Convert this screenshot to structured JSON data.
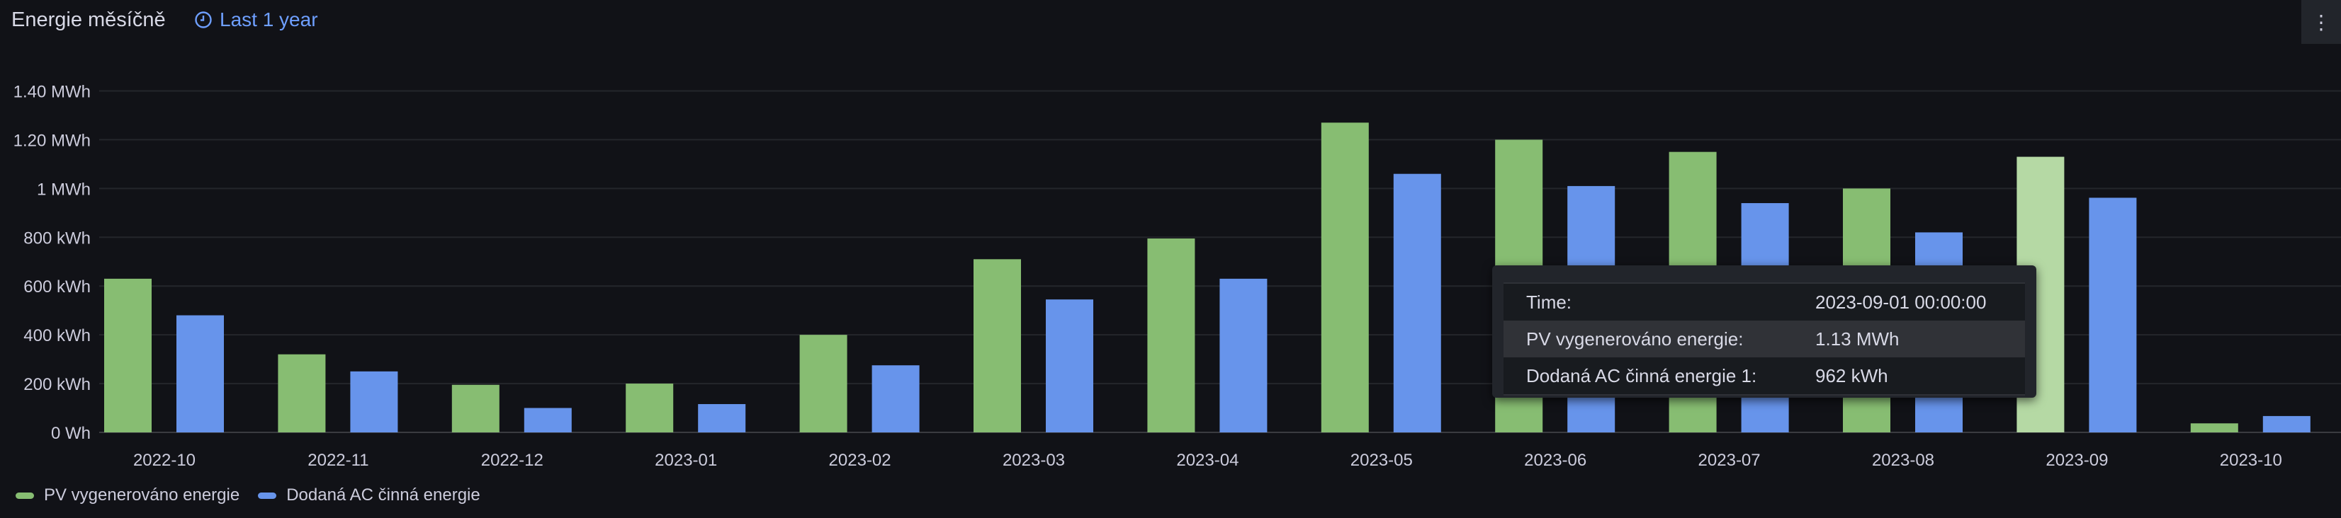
{
  "header": {
    "title": "Energie měsíčně",
    "time_range": "Last 1 year",
    "menu_icon": "vertical-ellipsis"
  },
  "colors": {
    "pv": "#87bd72",
    "ac": "#6794eb",
    "pv_hover": "#b5d9a4"
  },
  "chart_data": {
    "type": "bar",
    "title": "Energie měsíčně",
    "categories": [
      "2022-10",
      "2022-11",
      "2022-12",
      "2023-01",
      "2023-02",
      "2023-03",
      "2023-04",
      "2023-05",
      "2023-06",
      "2023-07",
      "2023-08",
      "2023-09",
      "2023-10"
    ],
    "series": [
      {
        "name": "PV vygenerováno energie",
        "unit": "MWh",
        "values": [
          0.63,
          0.32,
          0.195,
          0.2,
          0.4,
          0.71,
          0.795,
          1.27,
          1.2,
          1.15,
          1.0,
          1.13,
          0.037
        ]
      },
      {
        "name": "Dodaná AC činná energie",
        "unit": "MWh",
        "values": [
          0.48,
          0.25,
          0.1,
          0.116,
          0.275,
          0.545,
          0.63,
          1.06,
          1.01,
          0.94,
          0.82,
          0.962,
          0.067
        ]
      }
    ],
    "yticks": [
      {
        "v": 0,
        "label": "0 Wh"
      },
      {
        "v": 0.2,
        "label": "200 kWh"
      },
      {
        "v": 0.4,
        "label": "400 kWh"
      },
      {
        "v": 0.6,
        "label": "600 kWh"
      },
      {
        "v": 0.8,
        "label": "800 kWh"
      },
      {
        "v": 1.0,
        "label": "1 MWh"
      },
      {
        "v": 1.2,
        "label": "1.20 MWh"
      },
      {
        "v": 1.4,
        "label": "1.40 MWh"
      }
    ],
    "ylim": [
      0,
      1.4
    ],
    "grid": true,
    "legend_placement": "bottom-left",
    "hovered_index": 11
  },
  "tooltip": {
    "rows": [
      {
        "key": "Time:",
        "value": "2023-09-01 00:00:00"
      },
      {
        "key": "PV vygenerováno energie:",
        "value": "1.13 MWh"
      },
      {
        "key": "Dodaná AC činná energie 1:",
        "value": "962 kWh"
      }
    ]
  },
  "legend": [
    {
      "label": "PV vygenerováno energie"
    },
    {
      "label": "Dodaná AC činná energie"
    }
  ]
}
